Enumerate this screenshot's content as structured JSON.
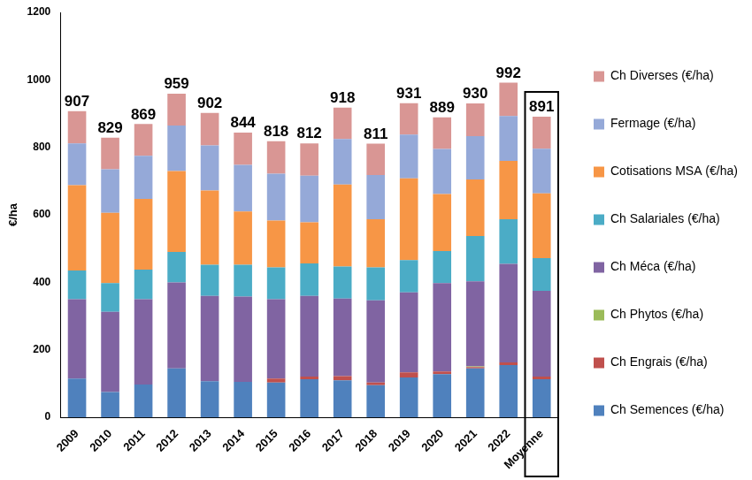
{
  "chart_data": {
    "type": "bar",
    "stacked": true,
    "y_label": "€/ha",
    "categories": [
      "2009",
      "2010",
      "2011",
      "2012",
      "2013",
      "2014",
      "2015",
      "2016",
      "2017",
      "2018",
      "2019",
      "2020",
      "2021",
      "2022",
      "Moyenne"
    ],
    "series": [
      {
        "name": "Ch Semences (€/ha)",
        "color": "#4f81bd",
        "values": [
          115,
          75,
          97,
          145,
          107,
          105,
          103,
          113,
          110,
          95,
          118,
          128,
          145,
          155,
          113
        ]
      },
      {
        "name": "Ch Engrais (€/ha)",
        "color": "#c0504d",
        "values": [
          0,
          0,
          0,
          0,
          0,
          0,
          12,
          8,
          12,
          8,
          15,
          8,
          4,
          8,
          8
        ]
      },
      {
        "name": "Ch Phytos (€/ha)",
        "color": "#9bbb59",
        "values": [
          0,
          0,
          0,
          0,
          0,
          0,
          0,
          0,
          0,
          0,
          0,
          0,
          2,
          0,
          0
        ]
      },
      {
        "name": "Ch Méca (€/ha)",
        "color": "#8064a2",
        "values": [
          235,
          238,
          253,
          255,
          253,
          253,
          235,
          239,
          230,
          244,
          237,
          262,
          252,
          292,
          254
        ]
      },
      {
        "name": "Ch Salariales (€/ha)",
        "color": "#4bacc6",
        "values": [
          85,
          85,
          88,
          90,
          92,
          94,
          94,
          96,
          95,
          97,
          96,
          95,
          134,
          132,
          97
        ]
      },
      {
        "name": "Cotisations MSA (€/ha)",
        "color": "#f79646",
        "values": [
          253,
          208,
          209,
          240,
          220,
          158,
          139,
          122,
          243,
          143,
          242,
          169,
          168,
          173,
          192
        ]
      },
      {
        "name": "Fermage (€/ha)",
        "color": "#95a9d8",
        "values": [
          124,
          129,
          128,
          135,
          134,
          138,
          139,
          138,
          135,
          131,
          130,
          133,
          128,
          133,
          132
        ]
      },
      {
        "name": "Ch Diverses (€/ha)",
        "color": "#d99694",
        "values": [
          95,
          94,
          94,
          94,
          96,
          96,
          96,
          96,
          93,
          93,
          93,
          94,
          97,
          99,
          95
        ]
      }
    ],
    "totals": [
      907,
      829,
      869,
      959,
      902,
      844,
      818,
      812,
      918,
      811,
      931,
      889,
      930,
      992,
      891
    ],
    "ylim": [
      0,
      1200
    ],
    "yticks": [
      0,
      200,
      400,
      600,
      800,
      1000,
      1200
    ],
    "grid": false,
    "legend": "right"
  }
}
